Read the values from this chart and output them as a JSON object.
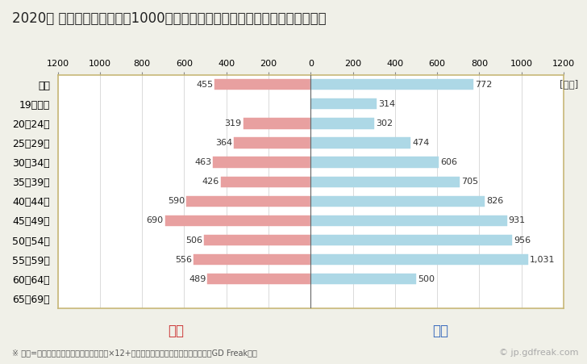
{
  "title": "2020年 民間企業（従業者数1000人以上）フルタイム労働者の男女別平均年収",
  "ylabel_unit": "[万円]",
  "categories": [
    "全体",
    "19歳以下",
    "20～24歳",
    "25～29歳",
    "30～34歳",
    "35～39歳",
    "40～44歳",
    "45～49歳",
    "50～54歳",
    "55～59歳",
    "60～64歳",
    "65～69歳"
  ],
  "female_values": [
    455,
    0,
    319,
    364,
    463,
    426,
    590,
    690,
    506,
    556,
    489,
    0
  ],
  "male_values": [
    772,
    314,
    302,
    474,
    606,
    705,
    826,
    931,
    956,
    1031,
    500,
    0
  ],
  "female_color": "#e8a0a0",
  "male_color": "#add8e6",
  "female_label": "女性",
  "male_label": "男性",
  "female_label_color": "#cc3333",
  "male_label_color": "#3366bb",
  "xlim": 1200,
  "background_color": "#f0f0e8",
  "plot_background": "#ffffff",
  "grid_color": "#cccccc",
  "border_color": "#c8b878",
  "footnote": "※ 年収=「きまって支給する現金給与額」×12+「年間賞与その他特別給与額」としてGD Freak推計",
  "watermark": "© jp.gdfreak.com",
  "title_fontsize": 12,
  "bar_height": 0.55,
  "value_fontsize": 8,
  "axis_fontsize": 8,
  "label_fontsize": 12
}
